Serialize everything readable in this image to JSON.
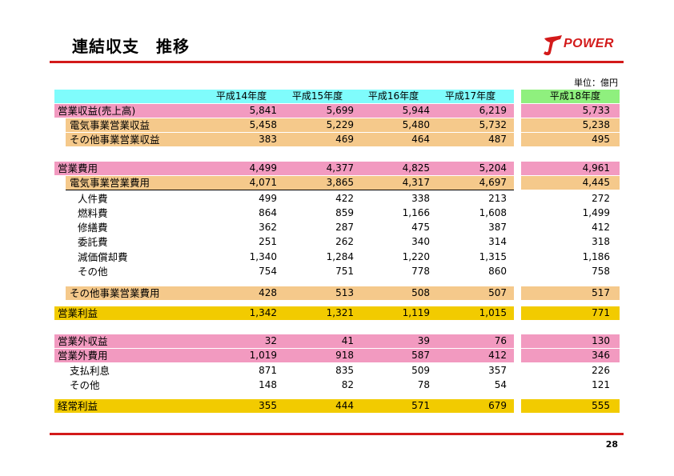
{
  "title": "連結収支　推移",
  "logo": {
    "text": "POWER",
    "accent": "#d31a1a"
  },
  "unit": "単位：億円",
  "page_number": "28",
  "colors": {
    "header": "#7ffcfc",
    "pink": "#f29ac0",
    "tan": "#f5c98b",
    "gold": "#f2cb00",
    "green": "#8ff07e",
    "rule": "#d31a1a"
  },
  "columns": [
    "平成14年度",
    "平成15年度",
    "平成16年度",
    "平成17年度"
  ],
  "forecast_column": "平成18年度",
  "rows": [
    {
      "label": "営業収益(売上高)",
      "values": [
        "5,841",
        "5,699",
        "5,944",
        "6,219"
      ],
      "forecast": "5,733"
    },
    {
      "label": "電気事業営業収益",
      "values": [
        "5,458",
        "5,229",
        "5,480",
        "5,732"
      ],
      "forecast": "5,238"
    },
    {
      "label": "その他事業営業収益",
      "values": [
        "383",
        "469",
        "464",
        "487"
      ],
      "forecast": "495"
    },
    {
      "label": "営業費用",
      "values": [
        "4,499",
        "4,377",
        "4,825",
        "5,204"
      ],
      "forecast": "4,961"
    },
    {
      "label": "電気事業営業費用",
      "values": [
        "4,071",
        "3,865",
        "4,317",
        "4,697"
      ],
      "forecast": "4,445"
    },
    {
      "label": "人件費",
      "values": [
        "499",
        "422",
        "338",
        "213"
      ],
      "forecast": "272"
    },
    {
      "label": "燃料費",
      "values": [
        "864",
        "859",
        "1,166",
        "1,608"
      ],
      "forecast": "1,499"
    },
    {
      "label": "修繕費",
      "values": [
        "362",
        "287",
        "475",
        "387"
      ],
      "forecast": "412"
    },
    {
      "label": "委託費",
      "values": [
        "251",
        "262",
        "340",
        "314"
      ],
      "forecast": "318"
    },
    {
      "label": "減価償却費",
      "values": [
        "1,340",
        "1,284",
        "1,220",
        "1,315"
      ],
      "forecast": "1,186"
    },
    {
      "label": "その他",
      "values": [
        "754",
        "751",
        "778",
        "860"
      ],
      "forecast": "758"
    },
    {
      "label": "その他事業営業費用",
      "values": [
        "428",
        "513",
        "508",
        "507"
      ],
      "forecast": "517"
    },
    {
      "label": "営業利益",
      "values": [
        "1,342",
        "1,321",
        "1,119",
        "1,015"
      ],
      "forecast": "771"
    },
    {
      "label": "営業外収益",
      "values": [
        "32",
        "41",
        "39",
        "76"
      ],
      "forecast": "130"
    },
    {
      "label": "営業外費用",
      "values": [
        "1,019",
        "918",
        "587",
        "412"
      ],
      "forecast": "346"
    },
    {
      "label": "支払利息",
      "values": [
        "871",
        "835",
        "509",
        "357"
      ],
      "forecast": "226"
    },
    {
      "label": "その他",
      "values": [
        "148",
        "82",
        "78",
        "54"
      ],
      "forecast": "121"
    },
    {
      "label": "経常利益",
      "values": [
        "355",
        "444",
        "571",
        "679"
      ],
      "forecast": "555"
    }
  ]
}
